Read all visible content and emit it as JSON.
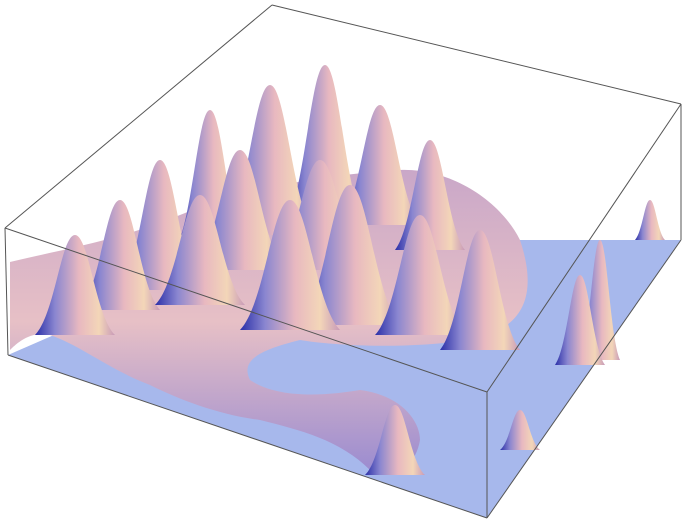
{
  "chart_data": {
    "type": "surface"
  }
}
